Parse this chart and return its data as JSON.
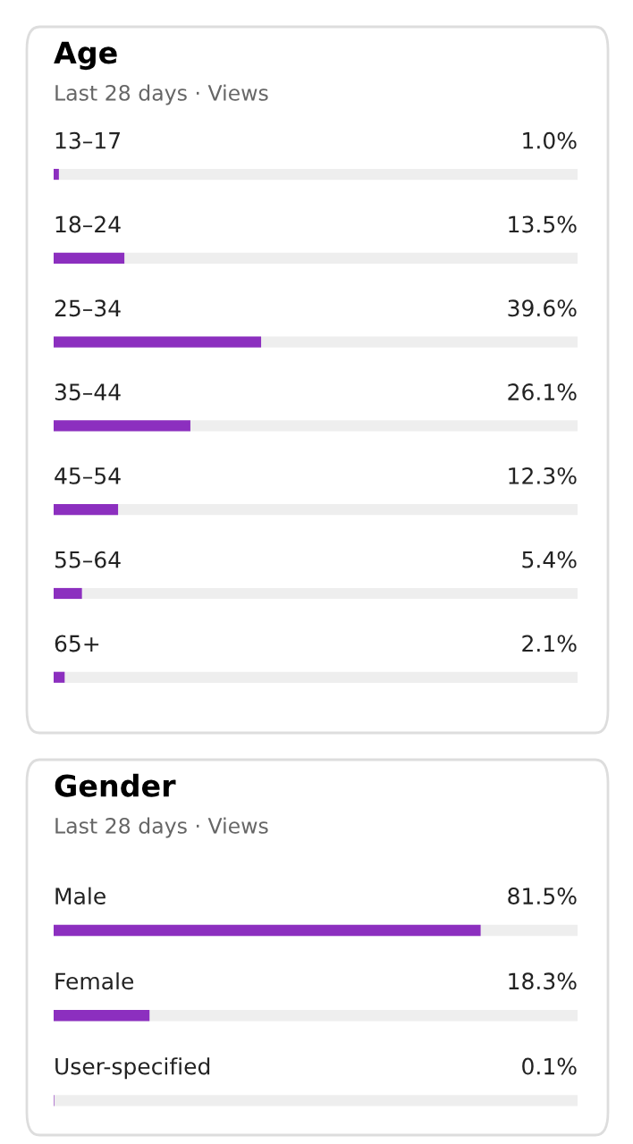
{
  "chart_data": [
    {
      "type": "bar",
      "orientation": "horizontal",
      "title": "Age",
      "subtitle": "Last 28 days · Views",
      "categories": [
        "13–17",
        "18–24",
        "25–34",
        "35–44",
        "45–54",
        "55–64",
        "65+"
      ],
      "values": [
        1.0,
        13.5,
        39.6,
        26.1,
        12.3,
        5.4,
        2.1
      ],
      "value_labels": [
        "1.0%",
        "13.5%",
        "39.6%",
        "26.1%",
        "12.3%",
        "5.4%",
        "2.1%"
      ],
      "color": "#8c2fbf",
      "xlim": [
        0,
        100
      ],
      "tick_labels": false
    },
    {
      "type": "bar",
      "orientation": "horizontal",
      "title": "Gender",
      "subtitle": "Last 28 days · Views",
      "categories": [
        "Male",
        "Female",
        "User-specified"
      ],
      "values": [
        81.5,
        18.3,
        0.1
      ],
      "value_labels": [
        "81.5%",
        "18.3%",
        "0.1%"
      ],
      "color": "#8c2fbf",
      "xlim": [
        0,
        100
      ],
      "tick_labels": false
    }
  ]
}
